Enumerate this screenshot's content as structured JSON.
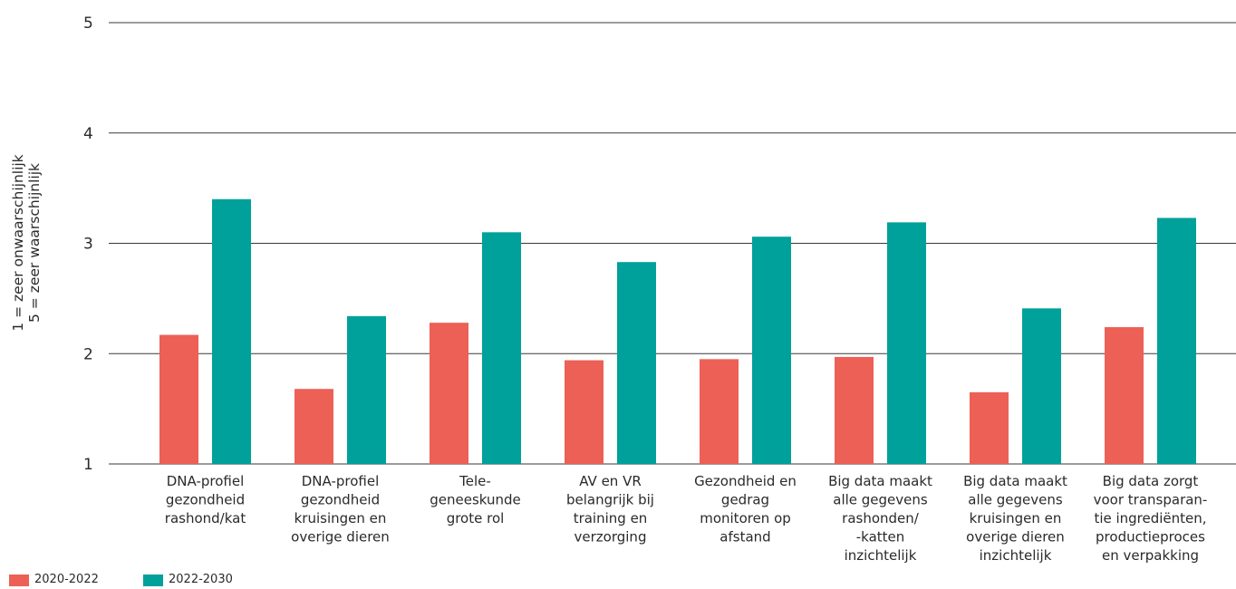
{
  "chart_data": {
    "type": "bar",
    "title": "",
    "xlabel": "",
    "ylabel_lines": [
      "1 = zeer onwaarschijnlijk",
      "5 = zeer waarschijnlijk"
    ],
    "ylim": [
      1,
      5
    ],
    "yticks": [
      "1",
      "2",
      "3",
      "4",
      "5"
    ],
    "grid": true,
    "legend_position": "bottom-left",
    "categories": [
      [
        "DNA-profiel",
        "gezondheid",
        "rashond/kat"
      ],
      [
        "DNA-profiel",
        "gezondheid",
        "kruisingen en",
        "overige dieren"
      ],
      [
        "Tele-",
        "geneeskunde",
        "grote rol"
      ],
      [
        "AV en VR",
        "belangrijk bij",
        "training en",
        "verzorging"
      ],
      [
        "Gezondheid en",
        "gedrag",
        "monitoren op",
        "afstand"
      ],
      [
        "Big data maakt",
        "alle gegevens",
        "rashonden/",
        "-katten",
        "inzichtelijk"
      ],
      [
        "Big data maakt",
        "alle gegevens",
        "kruisingen en",
        "overige dieren",
        "inzichtelijk"
      ],
      [
        "Big data zorgt",
        "voor transparan-",
        "tie ingrediënten,",
        "productieproces",
        "en verpakking"
      ]
    ],
    "series": [
      {
        "name": "2020-2022",
        "color": "#ec6055",
        "values": [
          2.17,
          1.68,
          2.28,
          1.94,
          1.95,
          1.97,
          1.65,
          2.24
        ]
      },
      {
        "name": "2022-2030",
        "color": "#00a19a",
        "values": [
          3.4,
          2.34,
          3.1,
          2.83,
          3.06,
          3.19,
          2.41,
          3.23
        ]
      }
    ]
  }
}
